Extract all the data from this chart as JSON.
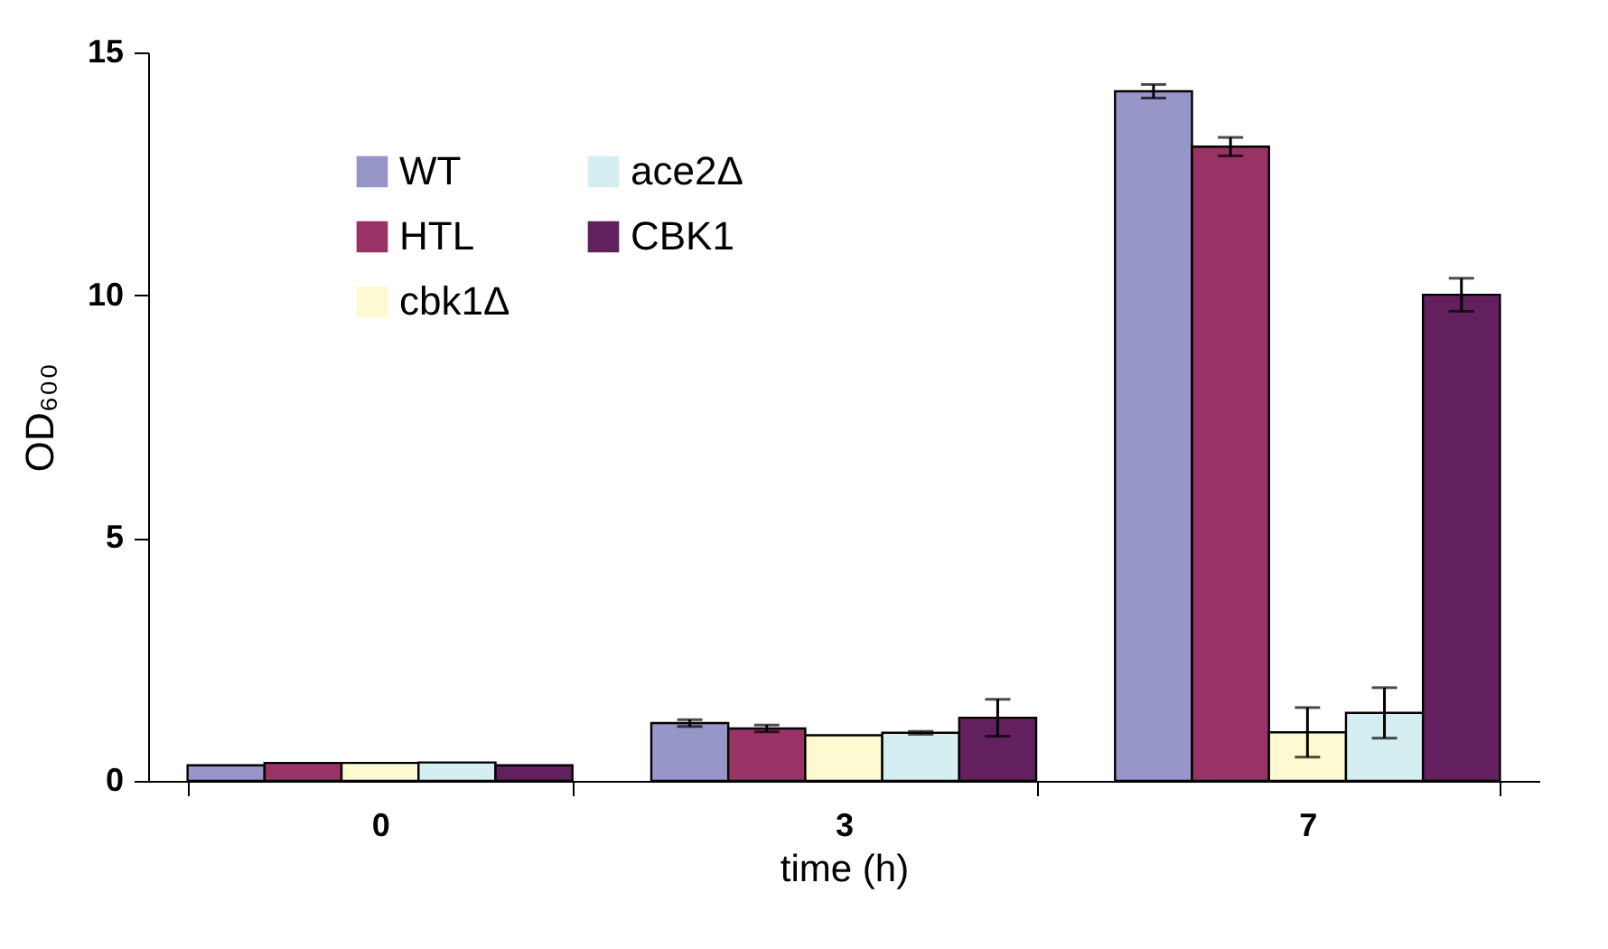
{
  "chart_data": {
    "type": "bar",
    "xlabel": "time (h)",
    "ylabel": "OD₆₀₀",
    "categories": [
      "0",
      "3",
      "7"
    ],
    "series": [
      {
        "name": "WT",
        "color": "#9696c8",
        "values": [
          0.32,
          1.19,
          14.2
        ],
        "errors": [
          null,
          0.07,
          0.14
        ]
      },
      {
        "name": "HTL",
        "color": "#993366",
        "values": [
          0.37,
          1.08,
          13.06
        ],
        "errors": [
          null,
          0.07,
          0.19
        ]
      },
      {
        "name": "cbk1Δ",
        "color": "#fdf9d0",
        "values": [
          0.37,
          0.94,
          1.0
        ],
        "errors": [
          null,
          null,
          0.51
        ]
      },
      {
        "name": "ace2Δ",
        "color": "#d5eef2",
        "values": [
          0.38,
          0.99,
          1.4
        ],
        "errors": [
          null,
          0.03,
          0.52
        ]
      },
      {
        "name": "CBK1",
        "color": "#63205f",
        "values": [
          0.32,
          1.3,
          10.01
        ],
        "errors": [
          null,
          0.38,
          0.34
        ]
      }
    ],
    "ylim": [
      0,
      15
    ],
    "yticks": [
      0,
      5,
      10,
      15
    ],
    "grid": false,
    "legend": "top left"
  }
}
